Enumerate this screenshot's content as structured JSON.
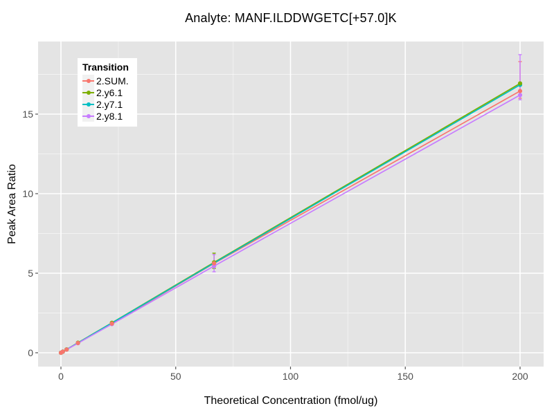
{
  "chart_data": {
    "type": "line",
    "title": "Analyte: MANF.ILDDWGETC[+57.0]K",
    "xlabel": "Theoretical Concentration (fmol/ug)",
    "ylabel": "Peak Area Ratio",
    "legend_title": "Transition",
    "legend_position": "top-left-inside",
    "grid": "on",
    "x_ticks": [
      0,
      50,
      100,
      150,
      200
    ],
    "y_ticks": [
      0,
      5,
      10,
      15
    ],
    "x_minor_ticks": [
      25,
      75,
      125,
      175
    ],
    "y_minor_ticks": [
      2.5,
      7.5,
      12.5,
      17.5
    ],
    "xlim": [
      0,
      200
    ],
    "ylim": [
      0,
      18.7
    ],
    "x": [
      0,
      0.82,
      2.47,
      7.41,
      22.2,
      66.7,
      200
    ],
    "series": [
      {
        "name": "2.SUM.",
        "color": "#F8766D",
        "y": [
          0,
          0.07,
          0.2,
          0.61,
          1.83,
          5.62,
          16.45
        ]
      },
      {
        "name": "2.y6.1",
        "color": "#7CAE00",
        "y": [
          0,
          0.07,
          0.21,
          0.63,
          1.88,
          5.68,
          16.93
        ]
      },
      {
        "name": "2.y7.1",
        "color": "#00BFC4",
        "y": [
          0,
          0.07,
          0.21,
          0.62,
          1.87,
          5.64,
          16.84
        ]
      },
      {
        "name": "2.y8.1",
        "color": "#C77CFF",
        "y": [
          0,
          0.07,
          0.2,
          0.6,
          1.8,
          5.45,
          16.2
        ]
      }
    ],
    "error_bars": [
      {
        "series": "2.y6.1",
        "x": 66.7,
        "low": 5.3,
        "high": 6.26
      },
      {
        "series": "2.y8.1",
        "x": 66.7,
        "low": 5.09,
        "high": 6.17
      },
      {
        "series": "2.SUM.",
        "x": 200,
        "low": 16.0,
        "high": 18.3
      },
      {
        "series": "2.y8.1",
        "x": 200,
        "low": 15.9,
        "high": 18.74
      }
    ],
    "style": {
      "panel_bg": "#E4E4E4",
      "grid_major": "#FFFFFF",
      "grid_minor": "rgba(255,255,255,0.55)",
      "tick_color": "#555555",
      "tick_label_color": "#4d4d4d",
      "legend_key_bg": "#f1f1f1"
    }
  }
}
